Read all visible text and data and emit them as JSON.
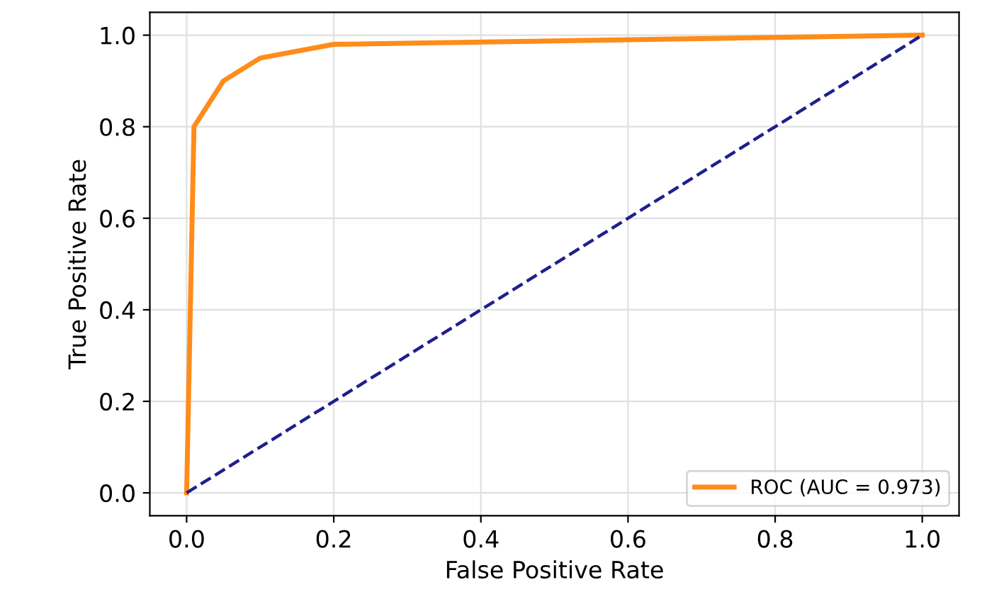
{
  "chart_data": {
    "type": "line",
    "xlabel": "False Positive Rate",
    "ylabel": "True Positive Rate",
    "series": [
      {
        "name": "ROC (AUC = 0.973)",
        "color": "#ff8c1a",
        "x": [
          0,
          0.01,
          0.05,
          0.1,
          0.2,
          1.0
        ],
        "values": [
          0,
          0.8,
          0.9,
          0.95,
          0.98,
          1.0
        ],
        "line_style": "solid"
      },
      {
        "color": "#1f1f8c",
        "x": [
          0,
          1.0
        ],
        "values": [
          0,
          1.0
        ],
        "line_style": "dashed"
      }
    ],
    "xlim": [
      -0.05,
      1.05
    ],
    "ylim": [
      -0.05,
      1.05
    ],
    "xticks": [
      {
        "value": 0,
        "label": "0.0"
      },
      0.2,
      0.4,
      0.6,
      0.8,
      {
        "value": 1,
        "label": "1.0"
      }
    ],
    "yticks": [
      {
        "value": 0,
        "label": "0.0"
      },
      0.2,
      0.4,
      0.6,
      0.8,
      {
        "value": 1,
        "label": "1.0"
      }
    ],
    "grid": true,
    "legend": "bottom right",
    "marker": "none"
  }
}
